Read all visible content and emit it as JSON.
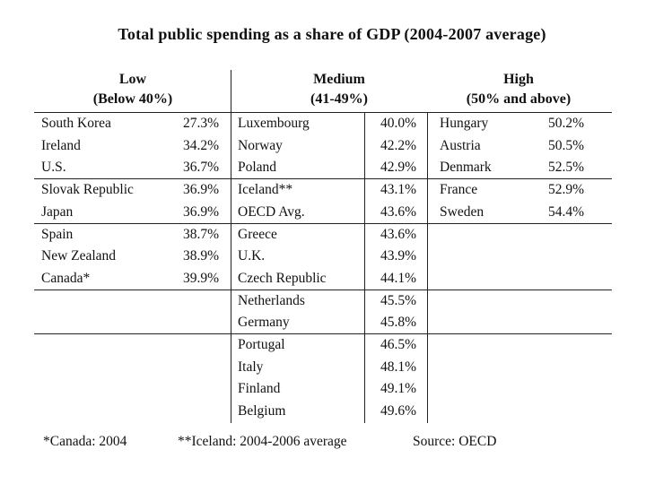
{
  "title": "Total public spending as a share of GDP (2004-2007 average)",
  "headers": {
    "low": {
      "name": "Low",
      "range": "(Below 40%)"
    },
    "medium": {
      "name": "Medium",
      "range": "(41-49%)"
    },
    "high": {
      "name": "High",
      "range": "(50% and above)"
    }
  },
  "rows": [
    {
      "low_c": "South Korea",
      "low_v": "27.3%",
      "med_c": "Luxembourg",
      "med_v": "40.0%",
      "high_c": "Hungary",
      "high_v": "50.2%"
    },
    {
      "low_c": "Ireland",
      "low_v": "34.2%",
      "med_c": "Norway",
      "med_v": "42.2%",
      "high_c": "Austria",
      "high_v": "50.5%"
    },
    {
      "low_c": "U.S.",
      "low_v": "36.7%",
      "med_c": "Poland",
      "med_v": "42.9%",
      "high_c": "Denmark",
      "high_v": "52.5%"
    },
    {
      "low_c": "Slovak Republic",
      "low_v": "36.9%",
      "med_c": "Iceland**",
      "med_v": "43.1%",
      "high_c": "France",
      "high_v": "52.9%"
    },
    {
      "low_c": "Japan",
      "low_v": "36.9%",
      "med_c": "OECD Avg.",
      "med_v": "43.6%",
      "high_c": "Sweden",
      "high_v": "54.4%"
    },
    {
      "low_c": "Spain",
      "low_v": "38.7%",
      "med_c": "Greece",
      "med_v": "43.6%",
      "high_c": "",
      "high_v": ""
    },
    {
      "low_c": "New Zealand",
      "low_v": "38.9%",
      "med_c": "U.K.",
      "med_v": "43.9%",
      "high_c": "",
      "high_v": ""
    },
    {
      "low_c": "Canada*",
      "low_v": "39.9%",
      "med_c": "Czech Republic",
      "med_v": "44.1%",
      "high_c": "",
      "high_v": ""
    },
    {
      "low_c": "",
      "low_v": "",
      "med_c": "Netherlands",
      "med_v": "45.5%",
      "high_c": "",
      "high_v": ""
    },
    {
      "low_c": "",
      "low_v": "",
      "med_c": "Germany",
      "med_v": "45.8%",
      "high_c": "",
      "high_v": ""
    },
    {
      "low_c": "",
      "low_v": "",
      "med_c": "Portugal",
      "med_v": "46.5%",
      "high_c": "",
      "high_v": ""
    },
    {
      "low_c": "",
      "low_v": "",
      "med_c": "Italy",
      "med_v": "48.1%",
      "high_c": "",
      "high_v": ""
    },
    {
      "low_c": "",
      "low_v": "",
      "med_c": "Finland",
      "med_v": "49.1%",
      "high_c": "",
      "high_v": ""
    },
    {
      "low_c": "",
      "low_v": "",
      "med_c": "Belgium",
      "med_v": "49.6%",
      "high_c": "",
      "high_v": ""
    }
  ],
  "footnotes": {
    "canada": "*Canada: 2004",
    "iceland": "**Iceland: 2004-2006 average",
    "source": "Source: OECD"
  }
}
